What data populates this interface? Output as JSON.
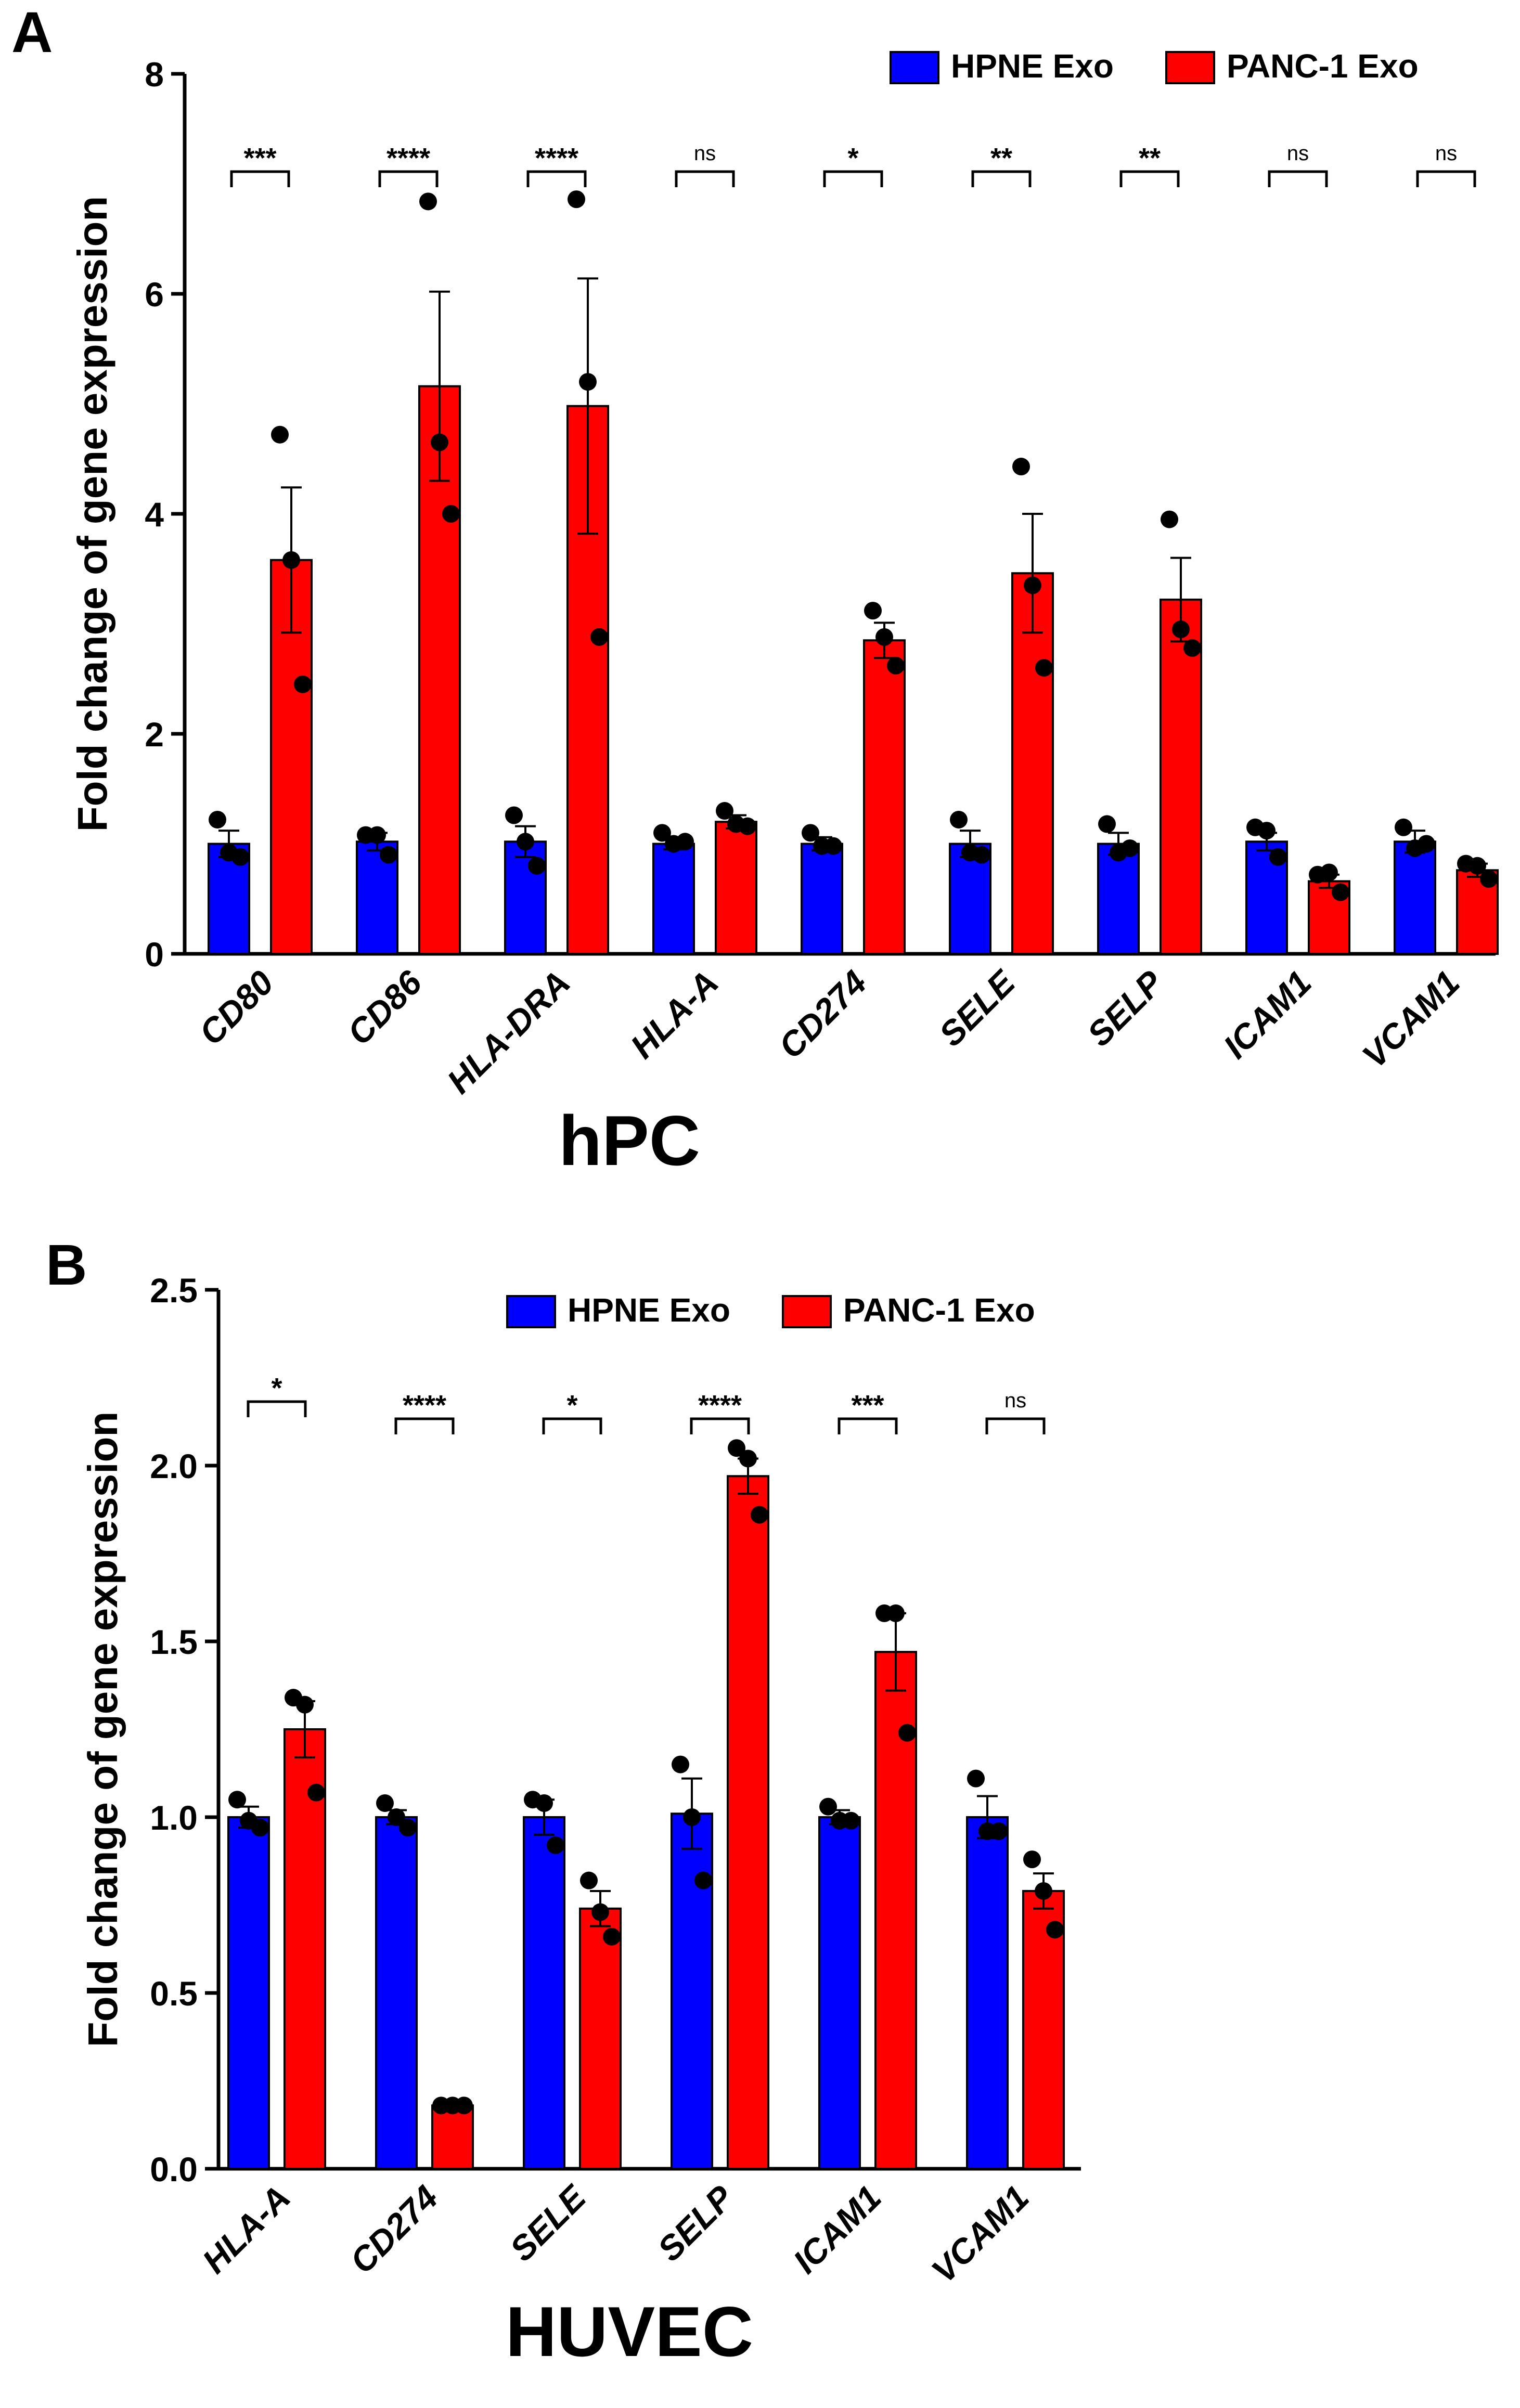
{
  "colors": {
    "hpne": "#0000ff",
    "panc1": "#ff0000",
    "axis": "#000000",
    "point": "#000000"
  },
  "chart_data": [
    {
      "panel_letter": "A",
      "type": "bar",
      "title": "hPC",
      "ylabel": "Fold change of gene expression",
      "xlabel": "",
      "ylim": [
        0,
        8
      ],
      "yticks": [
        "0",
        "2",
        "4",
        "6",
        "8"
      ],
      "ytick_values": [
        0,
        2,
        4,
        6,
        8
      ],
      "grid": false,
      "legend_position": "top-right",
      "categories": [
        "CD80",
        "CD86",
        "HLA-DRA",
        "HLA-A",
        "CD274",
        "SELE",
        "SELP",
        "ICAM1",
        "VCAM1"
      ],
      "series": [
        {
          "name": "HPNE Exo",
          "color_key": "hpne",
          "values": [
            1.0,
            1.02,
            1.02,
            1.0,
            1.0,
            1.0,
            1.0,
            1.02,
            1.02
          ],
          "errors": [
            0.12,
            0.08,
            0.14,
            0.05,
            0.06,
            0.12,
            0.1,
            0.08,
            0.1
          ],
          "points": [
            [
              1.22,
              0.92,
              0.88
            ],
            [
              1.08,
              1.08,
              0.9
            ],
            [
              1.26,
              1.02,
              0.8
            ],
            [
              1.1,
              1.0,
              1.02
            ],
            [
              1.1,
              0.98,
              0.98
            ],
            [
              1.22,
              0.92,
              0.9
            ],
            [
              1.18,
              0.92,
              0.96
            ],
            [
              1.15,
              1.12,
              0.88
            ],
            [
              1.15,
              0.96,
              1.0
            ]
          ]
        },
        {
          "name": "PANC-1 Exo",
          "color_key": "panc1",
          "values": [
            3.58,
            5.16,
            4.98,
            1.2,
            2.85,
            3.46,
            3.22,
            0.66,
            0.76
          ],
          "errors": [
            0.66,
            0.86,
            1.16,
            0.06,
            0.16,
            0.54,
            0.38,
            0.06,
            0.06
          ],
          "points": [
            [
              4.72,
              3.58,
              2.45
            ],
            [
              6.84,
              4.65,
              4.0
            ],
            [
              6.86,
              5.2,
              2.88
            ],
            [
              1.3,
              1.18,
              1.16
            ],
            [
              3.12,
              2.88,
              2.62
            ],
            [
              4.43,
              3.35,
              2.6
            ],
            [
              3.95,
              2.95,
              2.78
            ],
            [
              0.72,
              0.74,
              0.56
            ],
            [
              0.82,
              0.8,
              0.68
            ]
          ]
        }
      ],
      "significance": [
        "***",
        "****",
        "****",
        "ns",
        "*",
        "**",
        "**",
        "ns",
        "ns"
      ]
    },
    {
      "panel_letter": "B",
      "type": "bar",
      "title": "HUVEC",
      "ylabel": "Fold change of gene expression",
      "xlabel": "",
      "ylim": [
        0,
        2.5
      ],
      "yticks": [
        "0.0",
        "0.5",
        "1.0",
        "1.5",
        "2.0",
        "2.5"
      ],
      "ytick_values": [
        0,
        0.5,
        1.0,
        1.5,
        2.0,
        2.5
      ],
      "grid": false,
      "legend_position": "top-center",
      "categories": [
        "HLA-A",
        "CD274",
        "SELE",
        "SELP",
        "ICAM1",
        "VCAM1"
      ],
      "series": [
        {
          "name": "HPNE Exo",
          "color_key": "hpne",
          "values": [
            1.0,
            1.0,
            1.0,
            1.01,
            1.0,
            1.0
          ],
          "errors": [
            0.03,
            0.02,
            0.05,
            0.1,
            0.02,
            0.06
          ],
          "points": [
            [
              1.05,
              0.99,
              0.97
            ],
            [
              1.04,
              1.0,
              0.97
            ],
            [
              1.05,
              1.04,
              0.92
            ],
            [
              1.15,
              1.0,
              0.82
            ],
            [
              1.03,
              0.99,
              0.99
            ],
            [
              1.11,
              0.96,
              0.96
            ]
          ]
        },
        {
          "name": "PANC-1 Exo",
          "color_key": "panc1",
          "values": [
            1.25,
            0.18,
            0.74,
            1.97,
            1.47,
            0.79
          ],
          "errors": [
            0.08,
            0.01,
            0.05,
            0.05,
            0.11,
            0.05
          ],
          "points": [
            [
              1.34,
              1.32,
              1.07
            ],
            [
              0.18,
              0.18,
              0.18
            ],
            [
              0.82,
              0.73,
              0.66
            ],
            [
              2.05,
              2.02,
              1.86
            ],
            [
              1.58,
              1.58,
              1.24
            ],
            [
              0.88,
              0.79,
              0.68
            ]
          ]
        }
      ],
      "significance": [
        "*",
        "****",
        "*",
        "****",
        "***",
        "ns"
      ]
    }
  ]
}
